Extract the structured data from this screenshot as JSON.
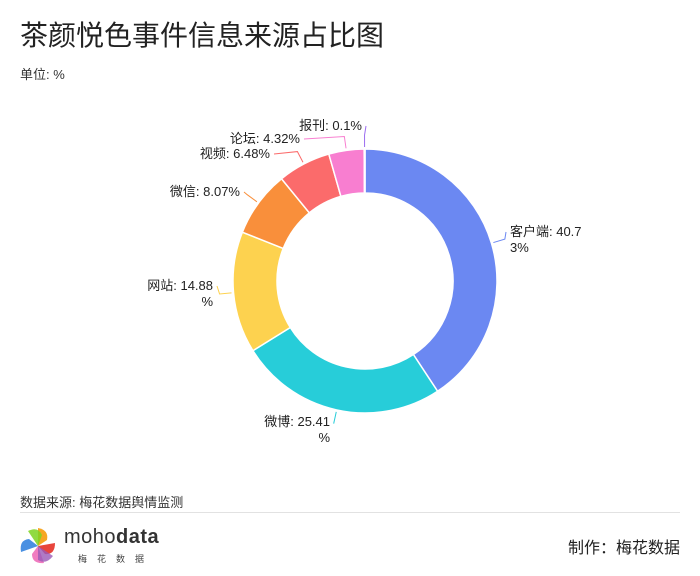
{
  "header": {
    "title": "茶颜悦色事件信息来源占比图",
    "unit": "单位: %"
  },
  "footer": {
    "source": "数据来源: 梅花数据舆情监测",
    "maker": "制作：梅花数据",
    "logo_word_a": "moho",
    "logo_word_b": "data",
    "logo_sub": "梅花数据"
  },
  "chart_data": {
    "type": "pie",
    "subtype": "donut",
    "title": "茶颜悦色事件信息来源占比图",
    "unit": "%",
    "categories": [
      "客户端",
      "微博",
      "网站",
      "微信",
      "视频",
      "论坛",
      "报刊"
    ],
    "values": [
      40.73,
      25.41,
      14.88,
      8.07,
      6.48,
      4.32,
      0.1
    ],
    "colors": [
      "#6b88f2",
      "#27cdd9",
      "#fdd24f",
      "#f98f3b",
      "#fb6b6b",
      "#f87ed0",
      "#9b6cf0"
    ],
    "data_labels": [
      [
        "客户端: 40.7",
        "3%"
      ],
      [
        "微博: 25.41",
        "%"
      ],
      [
        "网站: 14.88",
        "%"
      ],
      [
        "微信: 8.07%"
      ],
      [
        "视频: 6.48%"
      ],
      [
        "论坛: 4.32%"
      ],
      [
        "报刊: 0.1%"
      ]
    ],
    "legend": "none"
  }
}
